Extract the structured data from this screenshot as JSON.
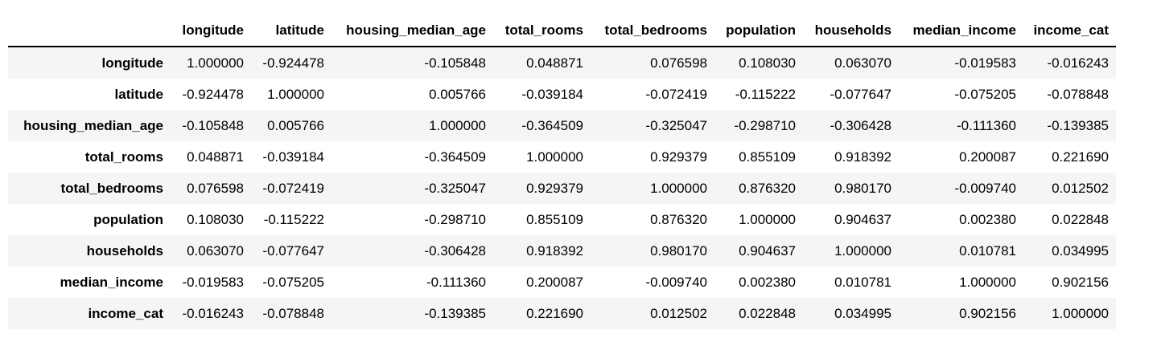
{
  "table": {
    "index_header": "",
    "columns": [
      "longitude",
      "latitude",
      "housing_median_age",
      "total_rooms",
      "total_bedrooms",
      "population",
      "households",
      "median_income",
      "income_cat"
    ],
    "rows": [
      {
        "label": "longitude",
        "cells": [
          "1.000000",
          "-0.924478",
          "-0.105848",
          "0.048871",
          "0.076598",
          "0.108030",
          "0.063070",
          "-0.019583",
          "-0.016243"
        ]
      },
      {
        "label": "latitude",
        "cells": [
          "-0.924478",
          "1.000000",
          "0.005766",
          "-0.039184",
          "-0.072419",
          "-0.115222",
          "-0.077647",
          "-0.075205",
          "-0.078848"
        ]
      },
      {
        "label": "housing_median_age",
        "cells": [
          "-0.105848",
          "0.005766",
          "1.000000",
          "-0.364509",
          "-0.325047",
          "-0.298710",
          "-0.306428",
          "-0.111360",
          "-0.139385"
        ]
      },
      {
        "label": "total_rooms",
        "cells": [
          "0.048871",
          "-0.039184",
          "-0.364509",
          "1.000000",
          "0.929379",
          "0.855109",
          "0.918392",
          "0.200087",
          "0.221690"
        ]
      },
      {
        "label": "total_bedrooms",
        "cells": [
          "0.076598",
          "-0.072419",
          "-0.325047",
          "0.929379",
          "1.000000",
          "0.876320",
          "0.980170",
          "-0.009740",
          "0.012502"
        ]
      },
      {
        "label": "population",
        "cells": [
          "0.108030",
          "-0.115222",
          "-0.298710",
          "0.855109",
          "0.876320",
          "1.000000",
          "0.904637",
          "0.002380",
          "0.022848"
        ]
      },
      {
        "label": "households",
        "cells": [
          "0.063070",
          "-0.077647",
          "-0.306428",
          "0.918392",
          "0.980170",
          "0.904637",
          "1.000000",
          "0.010781",
          "0.034995"
        ]
      },
      {
        "label": "median_income",
        "cells": [
          "-0.019583",
          "-0.075205",
          "-0.111360",
          "0.200087",
          "-0.009740",
          "0.002380",
          "0.010781",
          "1.000000",
          "0.902156"
        ]
      },
      {
        "label": "income_cat",
        "cells": [
          "-0.016243",
          "-0.078848",
          "-0.139385",
          "0.221690",
          "0.012502",
          "0.022848",
          "0.034995",
          "0.902156",
          "1.000000"
        ]
      }
    ]
  }
}
